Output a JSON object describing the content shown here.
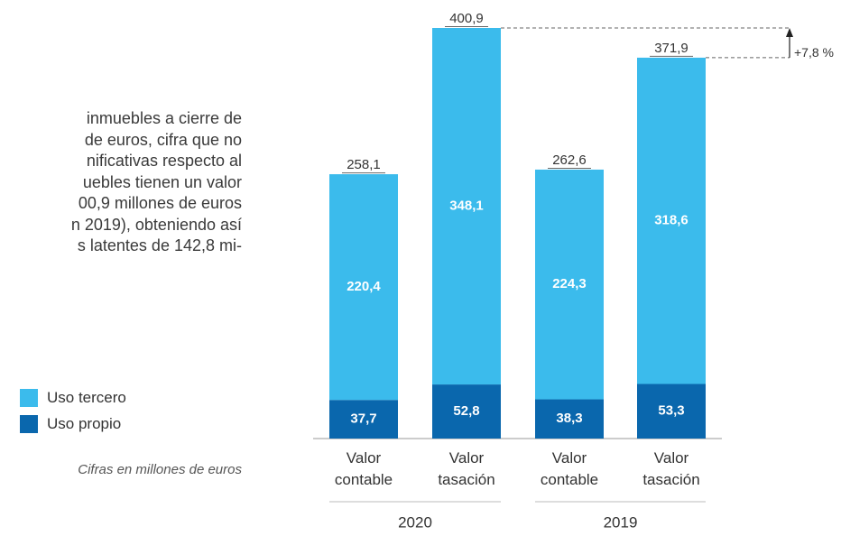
{
  "text_lines": [
    "inmuebles a cierre de",
    "de euros, cifra que no",
    "nificativas respecto al",
    "uebles tienen un valor",
    "00,9 millones de euros",
    "n 2019), obteniendo así",
    "s latentes de 142,8 mi-"
  ],
  "chart_data": {
    "type": "bar",
    "stacked": true,
    "categories": [
      "Valor contable",
      "Valor tasación",
      "Valor contable",
      "Valor tasación"
    ],
    "groups": [
      "2020",
      "2019"
    ],
    "series": [
      {
        "name": "Uso propio",
        "color": "#0a67ad",
        "values": [
          37.7,
          52.8,
          38.3,
          53.3
        ],
        "value_labels": [
          "37,7",
          "52,8",
          "38,3",
          "53,3"
        ]
      },
      {
        "name": "Uso tercero",
        "color": "#3bbbec",
        "values": [
          220.4,
          348.1,
          224.3,
          318.6
        ],
        "value_labels": [
          "220,4",
          "348,1",
          "224,3",
          "318,6"
        ]
      }
    ],
    "totals": [
      258.1,
      400.9,
      262.6,
      371.9
    ],
    "total_labels": [
      "258,1",
      "400,9",
      "262,6",
      "371,9"
    ],
    "annotation": "+7,8 %",
    "note": "Cifras en millones de euros"
  }
}
